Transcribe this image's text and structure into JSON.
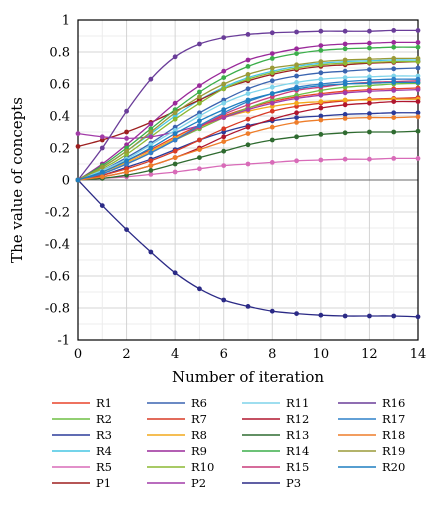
{
  "chart_data": {
    "type": "line",
    "title": "",
    "xlabel": "Number of iteration",
    "ylabel": "The value of concepts",
    "xlim": [
      0,
      14
    ],
    "ylim": [
      -1,
      1
    ],
    "x": [
      0,
      1,
      2,
      3,
      4,
      5,
      6,
      7,
      8,
      9,
      10,
      11,
      12,
      13,
      14
    ],
    "x_ticks": [
      "0",
      "2",
      "4",
      "6",
      "8",
      "10",
      "12",
      "14"
    ],
    "y_ticks": [
      "1",
      "0.8",
      "0.6",
      "0.4",
      "0.2",
      "0",
      "-0.2",
      "-0.4",
      "-0.6",
      "-0.8",
      "-1"
    ],
    "grid": true,
    "legend_position": "bottom",
    "series": [
      {
        "name": "R1",
        "color": "#e8432a",
        "values": [
          0,
          0.05,
          0.12,
          0.19,
          0.27,
          0.34,
          0.4,
          0.45,
          0.49,
          0.52,
          0.54,
          0.555,
          0.565,
          0.57,
          0.575
        ]
      },
      {
        "name": "R2",
        "color": "#6fbf44",
        "values": [
          0,
          0.04,
          0.1,
          0.17,
          0.25,
          0.32,
          0.39,
          0.45,
          0.5,
          0.53,
          0.56,
          0.58,
          0.59,
          0.6,
          0.605
        ]
      },
      {
        "name": "R3",
        "color": "#2b3b9a",
        "values": [
          0,
          0.03,
          0.08,
          0.13,
          0.19,
          0.25,
          0.3,
          0.34,
          0.37,
          0.39,
          0.4,
          0.41,
          0.415,
          0.42,
          0.42
        ]
      },
      {
        "name": "R4",
        "color": "#46c6e4",
        "values": [
          0,
          0.08,
          0.18,
          0.29,
          0.4,
          0.5,
          0.58,
          0.64,
          0.68,
          0.71,
          0.73,
          0.74,
          0.745,
          0.75,
          0.75
        ]
      },
      {
        "name": "R5",
        "color": "#d86bb8",
        "values": [
          0,
          0.01,
          0.02,
          0.035,
          0.05,
          0.07,
          0.09,
          0.1,
          0.11,
          0.12,
          0.125,
          0.13,
          0.13,
          0.135,
          0.135
        ]
      },
      {
        "name": "P1",
        "color": "#9d1f1f",
        "values": [
          0.21,
          0.25,
          0.3,
          0.36,
          0.43,
          0.5,
          0.57,
          0.62,
          0.66,
          0.69,
          0.71,
          0.72,
          0.73,
          0.735,
          0.74
        ]
      },
      {
        "name": "R6",
        "color": "#3a64b0",
        "values": [
          0,
          0.06,
          0.14,
          0.23,
          0.33,
          0.42,
          0.5,
          0.57,
          0.62,
          0.65,
          0.67,
          0.68,
          0.69,
          0.695,
          0.7
        ]
      },
      {
        "name": "R7",
        "color": "#d93a25",
        "values": [
          0,
          0.03,
          0.07,
          0.12,
          0.18,
          0.25,
          0.32,
          0.38,
          0.43,
          0.46,
          0.48,
          0.495,
          0.505,
          0.51,
          0.515
        ]
      },
      {
        "name": "R8",
        "color": "#f2a81c",
        "values": [
          0,
          0.05,
          0.11,
          0.18,
          0.26,
          0.33,
          0.39,
          0.43,
          0.46,
          0.48,
          0.49,
          0.5,
          0.5,
          0.505,
          0.505
        ]
      },
      {
        "name": "R9",
        "color": "#9a2a9a",
        "values": [
          0,
          0.1,
          0.22,
          0.35,
          0.48,
          0.59,
          0.68,
          0.75,
          0.79,
          0.82,
          0.84,
          0.85,
          0.855,
          0.86,
          0.86
        ]
      },
      {
        "name": "R10",
        "color": "#8cb832",
        "values": [
          0,
          0.07,
          0.16,
          0.27,
          0.38,
          0.48,
          0.57,
          0.63,
          0.67,
          0.7,
          0.72,
          0.73,
          0.735,
          0.74,
          0.74
        ]
      },
      {
        "name": "P2",
        "color": "#a23ba8",
        "values": [
          0.29,
          0.27,
          0.26,
          0.27,
          0.3,
          0.34,
          0.39,
          0.44,
          0.48,
          0.51,
          0.53,
          0.545,
          0.555,
          0.56,
          0.565
        ]
      },
      {
        "name": "R11",
        "color": "#7fd4ea",
        "values": [
          0,
          0.06,
          0.13,
          0.22,
          0.31,
          0.4,
          0.48,
          0.54,
          0.58,
          0.61,
          0.63,
          0.64,
          0.645,
          0.65,
          0.65
        ]
      },
      {
        "name": "R12",
        "color": "#b0162e",
        "values": [
          0,
          0.02,
          0.05,
          0.09,
          0.14,
          0.2,
          0.27,
          0.33,
          0.38,
          0.42,
          0.45,
          0.47,
          0.48,
          0.49,
          0.49
        ]
      },
      {
        "name": "R13",
        "color": "#2f6b30",
        "values": [
          0,
          0.01,
          0.03,
          0.06,
          0.1,
          0.14,
          0.18,
          0.22,
          0.25,
          0.27,
          0.285,
          0.295,
          0.3,
          0.3,
          0.305
        ]
      },
      {
        "name": "R14",
        "color": "#3bae4a",
        "values": [
          0,
          0.09,
          0.2,
          0.32,
          0.44,
          0.55,
          0.64,
          0.71,
          0.76,
          0.79,
          0.81,
          0.82,
          0.825,
          0.83,
          0.83
        ]
      },
      {
        "name": "R15",
        "color": "#c93c7a",
        "values": [
          0,
          0.04,
          0.1,
          0.17,
          0.25,
          0.33,
          0.41,
          0.47,
          0.52,
          0.56,
          0.58,
          0.6,
          0.61,
          0.615,
          0.62
        ]
      },
      {
        "name": "P3",
        "color": "#2b2a86",
        "values": [
          0,
          -0.16,
          -0.31,
          -0.45,
          -0.58,
          -0.68,
          -0.75,
          -0.79,
          -0.82,
          -0.835,
          -0.845,
          -0.85,
          -0.85,
          -0.85,
          -0.855
        ]
      },
      {
        "name": "R16",
        "color": "#6a3d99",
        "values": [
          0,
          0.2,
          0.43,
          0.63,
          0.77,
          0.85,
          0.89,
          0.91,
          0.92,
          0.925,
          0.93,
          0.93,
          0.93,
          0.935,
          0.935
        ]
      },
      {
        "name": "R17",
        "color": "#2f80c8",
        "values": [
          0,
          0.04,
          0.1,
          0.17,
          0.25,
          0.34,
          0.42,
          0.49,
          0.54,
          0.58,
          0.6,
          0.615,
          0.625,
          0.63,
          0.63
        ]
      },
      {
        "name": "R18",
        "color": "#ee7d2a",
        "values": [
          0,
          0.02,
          0.05,
          0.09,
          0.14,
          0.19,
          0.24,
          0.29,
          0.33,
          0.36,
          0.375,
          0.385,
          0.39,
          0.39,
          0.395
        ]
      },
      {
        "name": "R19",
        "color": "#9a9a38",
        "values": [
          0,
          0.08,
          0.18,
          0.3,
          0.42,
          0.52,
          0.6,
          0.66,
          0.7,
          0.72,
          0.74,
          0.75,
          0.755,
          0.76,
          0.76
        ]
      },
      {
        "name": "R20",
        "color": "#1f7fc1",
        "values": [
          0,
          0.05,
          0.12,
          0.2,
          0.29,
          0.37,
          0.44,
          0.5,
          0.54,
          0.57,
          0.59,
          0.6,
          0.605,
          0.61,
          0.61
        ]
      }
    ]
  },
  "legend": {
    "columns": [
      [
        "R1",
        "R2",
        "R3",
        "R4",
        "R5",
        "P1"
      ],
      [
        "R6",
        "R7",
        "R8",
        "R9",
        "R10",
        "P2"
      ],
      [
        "R11",
        "R12",
        "R13",
        "R14",
        "R15",
        "P3"
      ],
      [
        "R16",
        "R17",
        "R18",
        "R19",
        "R20"
      ]
    ]
  }
}
